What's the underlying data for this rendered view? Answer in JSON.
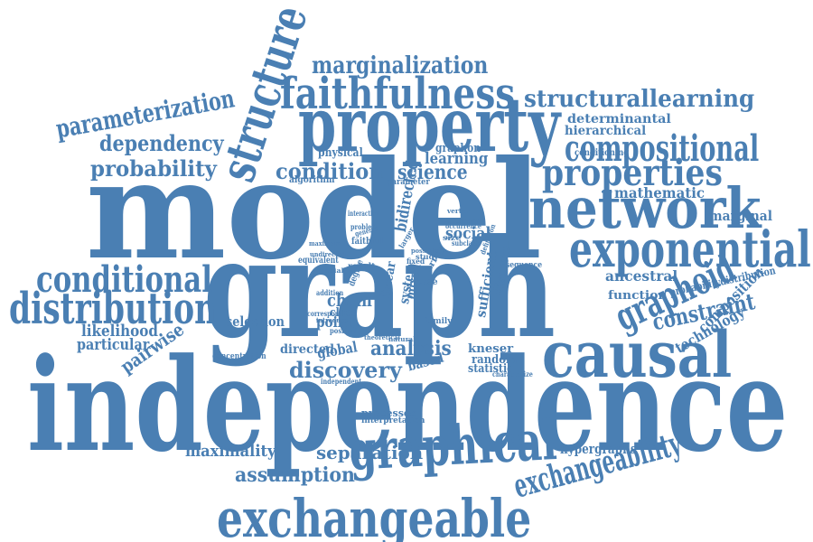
{
  "color": "#4a7fb3",
  "words": [
    {
      "text": "independence",
      "tier": 1
    },
    {
      "text": "model",
      "tier": 1
    },
    {
      "text": "graph",
      "tier": 1
    },
    {
      "text": "property",
      "tier": 2
    },
    {
      "text": "network",
      "tier": 2
    },
    {
      "text": "exponential",
      "tier": 2
    },
    {
      "text": "causal",
      "tier": 2
    },
    {
      "text": "graphical",
      "tier": 2
    },
    {
      "text": "exchangeable",
      "tier": 2
    },
    {
      "text": "structure",
      "tier": 2
    },
    {
      "text": "faithfulness",
      "tier": 3
    },
    {
      "text": "distribution",
      "tier": 3
    },
    {
      "text": "conditional",
      "tier": 3
    },
    {
      "text": "compositional",
      "tier": 3
    },
    {
      "text": "properties",
      "tier": 3
    },
    {
      "text": "graphoid",
      "tier": 3
    },
    {
      "text": "exchangeability",
      "tier": 3
    },
    {
      "text": "marginalization",
      "tier": 4
    },
    {
      "text": "structurallearning",
      "tier": 4
    },
    {
      "text": "parameterization",
      "tier": 4
    },
    {
      "text": "dependency",
      "tier": 4
    },
    {
      "text": "probability",
      "tier": 4
    },
    {
      "text": "condition",
      "tier": 4
    },
    {
      "text": "discovery",
      "tier": 4
    },
    {
      "text": "analysis",
      "tier": 4
    },
    {
      "text": "separation",
      "tier": 4
    },
    {
      "text": "assumption",
      "tier": 4
    },
    {
      "text": "constraint",
      "tier": 4
    },
    {
      "text": "science",
      "tier": 4
    },
    {
      "text": "maximality",
      "tier": 5
    },
    {
      "text": "likelihood",
      "tier": 5
    },
    {
      "text": "particular",
      "tier": 5
    },
    {
      "text": "pairwise",
      "tier": 5
    },
    {
      "text": "selection",
      "tier": 5
    },
    {
      "text": "chain",
      "tier": 5
    },
    {
      "text": "social",
      "tier": 5
    },
    {
      "text": "ancestral",
      "tier": 5
    },
    {
      "text": "marginal",
      "tier": 5
    },
    {
      "text": "learning",
      "tier": 5
    },
    {
      "text": "directed",
      "tier": 5
    },
    {
      "text": "global",
      "tier": 5
    },
    {
      "text": "point",
      "tier": 5
    },
    {
      "text": "class",
      "tier": 5
    },
    {
      "text": "kneser",
      "tier": 5
    },
    {
      "text": "random",
      "tier": 5
    },
    {
      "text": "statistic",
      "tier": 5
    },
    {
      "text": "based",
      "tier": 5
    },
    {
      "text": "hypergraphs",
      "tier": 5
    },
    {
      "text": "composition",
      "tier": 5
    },
    {
      "text": "technology",
      "tier": 5
    },
    {
      "text": "mathematic",
      "tier": 5
    },
    {
      "text": "determinantal",
      "tier": 5
    },
    {
      "text": "hierarchical",
      "tier": 5
    },
    {
      "text": "function",
      "tier": 5
    },
    {
      "text": "probabilitydistribution",
      "tier": 5
    },
    {
      "text": "physical",
      "tier": 5
    },
    {
      "text": "graphon",
      "tier": 5
    },
    {
      "text": "processes",
      "tier": 5
    },
    {
      "text": "interpretation",
      "tier": 6
    },
    {
      "text": "concentration",
      "tier": 6
    },
    {
      "text": "bidirected",
      "tier": 6
    },
    {
      "text": "mixed",
      "tier": 6
    },
    {
      "text": "system",
      "tier": 6
    },
    {
      "text": "linear",
      "tier": 6
    },
    {
      "text": "sufficient",
      "tier": 6
    },
    {
      "text": "discrete",
      "tier": 6
    },
    {
      "text": "algorithm",
      "tier": 6
    },
    {
      "text": "parameter",
      "tier": 6
    },
    {
      "text": "conditioning",
      "tier": 6
    },
    {
      "text": "faithful",
      "tier": 6
    },
    {
      "text": "equivalent",
      "tier": 6
    },
    {
      "text": "result",
      "tier": 6
    },
    {
      "text": "sequence",
      "tier": 6
    },
    {
      "text": "necessary",
      "tier": 6
    },
    {
      "text": "family",
      "tier": 6
    },
    {
      "text": "independent",
      "tier": 6
    },
    {
      "text": "positivity",
      "tier": 6
    },
    {
      "text": "interaction",
      "tier": 6
    },
    {
      "text": "problem",
      "tier": 6
    },
    {
      "text": "general",
      "tier": 6
    },
    {
      "text": "correspond",
      "tier": 6
    },
    {
      "text": "subclass",
      "tier": 6
    },
    {
      "text": "definition",
      "tier": 6
    },
    {
      "text": "characterize",
      "tier": 6
    },
    {
      "text": "addition",
      "tier": 6
    },
    {
      "text": "degree",
      "tier": 6
    },
    {
      "text": "study",
      "tier": 6
    },
    {
      "text": "vertex",
      "tier": 6
    },
    {
      "text": "fixed",
      "tier": 6
    },
    {
      "text": "theoretical",
      "tier": 6
    },
    {
      "text": "special",
      "tier": 6
    },
    {
      "text": "introduce",
      "tier": 6
    },
    {
      "text": "natural",
      "tier": 6
    },
    {
      "text": "larger",
      "tier": 6
    },
    {
      "text": "array",
      "tier": 6
    },
    {
      "text": "case",
      "tier": 6
    },
    {
      "text": "maximum",
      "tier": 6
    },
    {
      "text": "occurrence",
      "tier": 6
    },
    {
      "text": "possible",
      "tier": 6
    },
    {
      "text": "undirected",
      "tier": 6
    },
    {
      "text": "size",
      "tier": 6
    }
  ]
}
